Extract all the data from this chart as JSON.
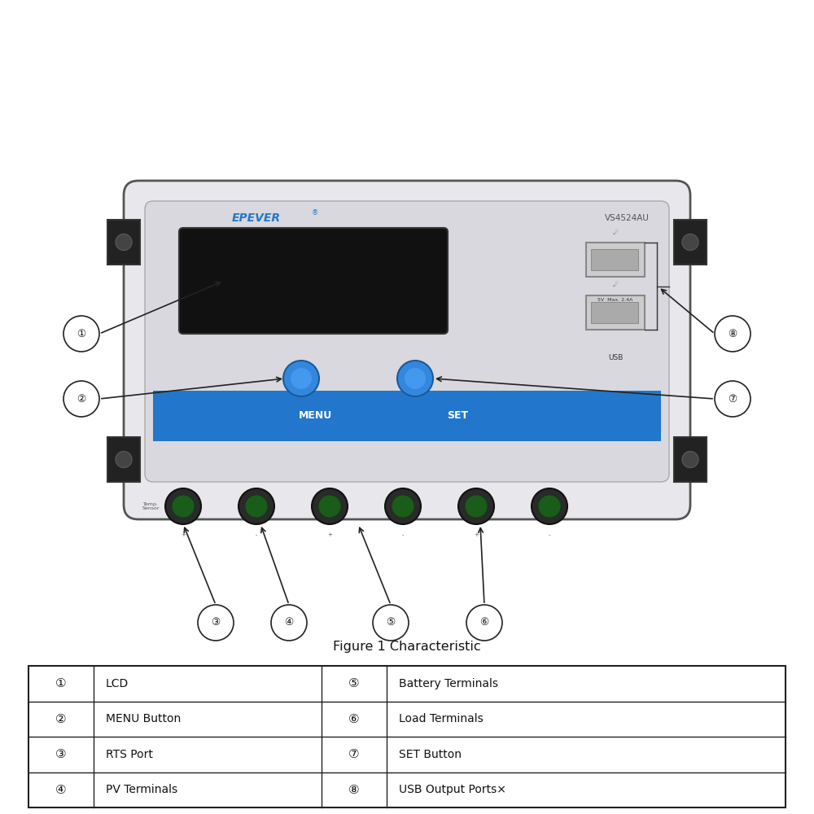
{
  "bg_color": "#ffffff",
  "figure_caption": "Figure 1 Characteristic",
  "table_rows": [
    [
      "①",
      "LCD",
      "⑤",
      "Battery Terminals"
    ],
    [
      "②",
      "MENU Button",
      "⑥",
      "Load Terminals"
    ],
    [
      "③",
      "RTS Port",
      "⑦",
      "SET Button"
    ],
    [
      "④",
      "PV Terminals",
      "⑧",
      "USB Output Ports×"
    ]
  ],
  "device_bg": "#e8e8ec",
  "device_border": "#555555",
  "lcd_color": "#111111",
  "blue_bar_color": "#2277cc",
  "button_color": "#3388dd",
  "terminal_bg": "#2a2a2a",
  "terminal_hole": "#1a5c1a",
  "brand_color": "#2277cc",
  "usb_port_color": "#cccccc",
  "label_color": "#000000"
}
